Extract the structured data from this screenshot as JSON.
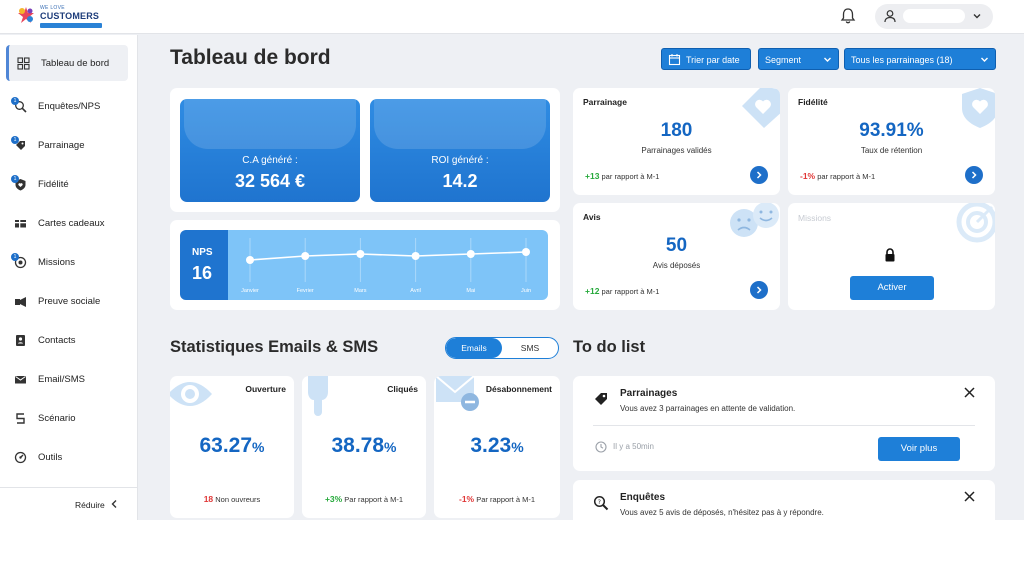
{
  "brand": {
    "top": "WE LOVE",
    "name": "CUSTOMERS",
    "tagline": "CONSTRUIRE LA RELATION CLIENT"
  },
  "sidebar": {
    "items": [
      {
        "label": "Tableau de bord",
        "icon": "dashboard-icon"
      },
      {
        "label": "Enquêtes/NPS",
        "icon": "survey-icon"
      },
      {
        "label": "Parrainage",
        "icon": "referral-icon"
      },
      {
        "label": "Fidélité",
        "icon": "loyalty-icon"
      },
      {
        "label": "Cartes cadeaux",
        "icon": "gift-card-icon"
      },
      {
        "label": "Missions",
        "icon": "missions-icon"
      },
      {
        "label": "Preuve sociale",
        "icon": "social-proof-icon"
      },
      {
        "label": "Contacts",
        "icon": "contacts-icon"
      },
      {
        "label": "Email/SMS",
        "icon": "email-icon"
      },
      {
        "label": "Scénario",
        "icon": "scenario-icon"
      },
      {
        "label": "Outils",
        "icon": "tools-icon"
      }
    ],
    "reduce_label": "Réduire"
  },
  "header": {
    "title": "Tableau de bord",
    "sort_button": "Trier par date",
    "segment": "Segment",
    "referrals_filter": "Tous les parrainages (18)"
  },
  "kpis": {
    "ca": {
      "label": "C.A généré :",
      "value": "32 564 €"
    },
    "roi": {
      "label": "ROI généré :",
      "value": "14.2"
    }
  },
  "nps": {
    "label": "NPS",
    "value": "16",
    "months": [
      "Janvier",
      "Fevrier",
      "Mars",
      "Avril",
      "Mai",
      "Juin"
    ],
    "points": [
      6,
      7,
      7.5,
      7,
      7.5,
      8
    ]
  },
  "cards": {
    "parrainage": {
      "title": "Parrainage",
      "value": "180",
      "sub": "Parrainages validés",
      "trend": "+13",
      "trend_text": "par rapport à M-1"
    },
    "fidelite": {
      "title": "Fidélité",
      "value": "93.91%",
      "sub": "Taux de rétention",
      "trend": "-1%",
      "trend_text": "par rapport à M-1"
    },
    "avis": {
      "title": "Avis",
      "value": "50",
      "sub": "Avis déposés",
      "trend": "+12",
      "trend_text": "par rapport à M-1"
    },
    "missions": {
      "title": "Missions",
      "button": "Activer"
    }
  },
  "stats": {
    "title": "Statistiques Emails & SMS",
    "toggle": {
      "emails": "Emails",
      "sms": "SMS"
    },
    "ouverture": {
      "title": "Ouverture",
      "value": "63.27",
      "pct": "%",
      "count": "18",
      "sub": "Non ouvreurs"
    },
    "cliques": {
      "title": "Cliqués",
      "value": "38.78",
      "pct": "%",
      "trend": "+3%",
      "sub": "Par rapport à M-1"
    },
    "desabonnement": {
      "title": "Désabonnement",
      "value": "3.23",
      "pct": "%",
      "trend": "-1%",
      "sub": "Par rapport à M-1"
    }
  },
  "todo": {
    "title": "To do list",
    "items": [
      {
        "title": "Parrainages",
        "desc": "Vous avez 3 parrainages en attente de validation.",
        "time": "Il y a 50min",
        "button": "Voir plus"
      },
      {
        "title": "Enquêtes",
        "desc": "Vous avez 5 avis de déposés, n'hésitez pas à y répondre."
      }
    ]
  },
  "colors": {
    "primary": "#1e7fd8",
    "value_blue": "#1466c2",
    "up": "#26a93b",
    "down": "#e03636",
    "background": "#eef0f4"
  }
}
